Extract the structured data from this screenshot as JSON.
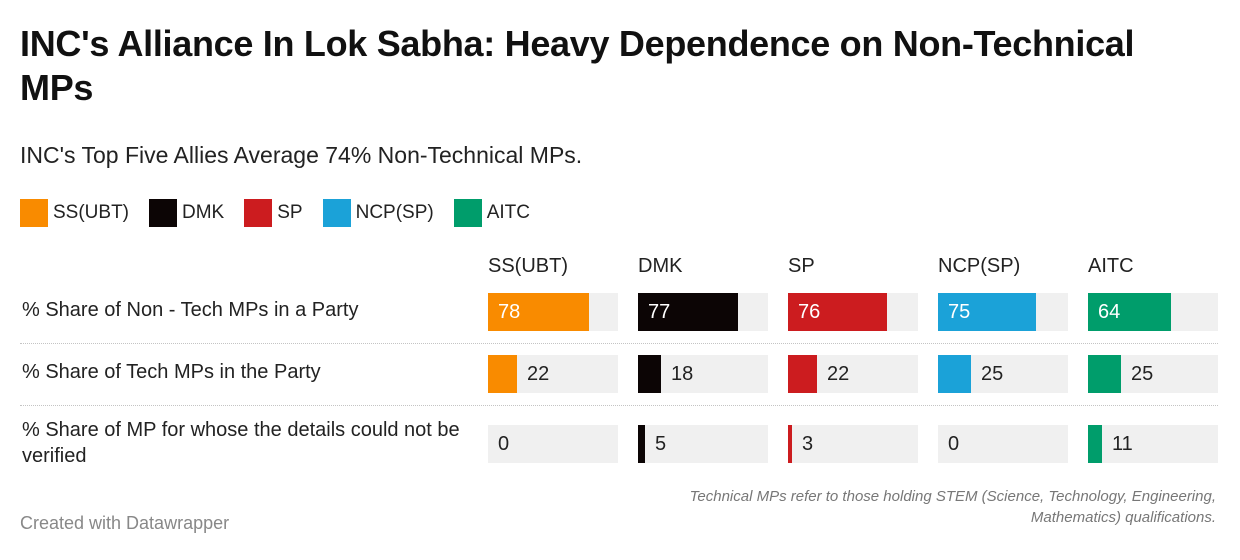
{
  "chart_data": {
    "type": "table",
    "title": "INC's Alliance In Lok Sabha: Heavy Dependence on Non-Technical MPs",
    "subtitle": "INC's Top Five Allies Average 74% Non-Technical MPs.",
    "legend": [
      {
        "name": "SS(UBT)",
        "color": "#f98b00"
      },
      {
        "name": "DMK",
        "color": "#0c0505"
      },
      {
        "name": "SP",
        "color": "#cc1c1f"
      },
      {
        "name": "NCP(SP)",
        "color": "#1ba2d8"
      },
      {
        "name": "AITC",
        "color": "#009d6b"
      }
    ],
    "columns": [
      "SS(UBT)",
      "DMK",
      "SP",
      "NCP(SP)",
      "AITC"
    ],
    "scale_max": 100,
    "rows": [
      {
        "label": "% Share of Non - Tech MPs in a Party",
        "values": [
          78,
          77,
          76,
          75,
          64
        ]
      },
      {
        "label": "% Share of Tech MPs in the Party",
        "values": [
          22,
          18,
          22,
          25,
          25
        ]
      },
      {
        "label": "% Share of MP for whose the details could not be verified",
        "values": [
          0,
          5,
          3,
          0,
          11
        ]
      }
    ],
    "note": "Technical MPs refer to those holding STEM (Science, Technology, Engineering, Mathematics) qualifications.",
    "credit": "Created with Datawrapper"
  }
}
